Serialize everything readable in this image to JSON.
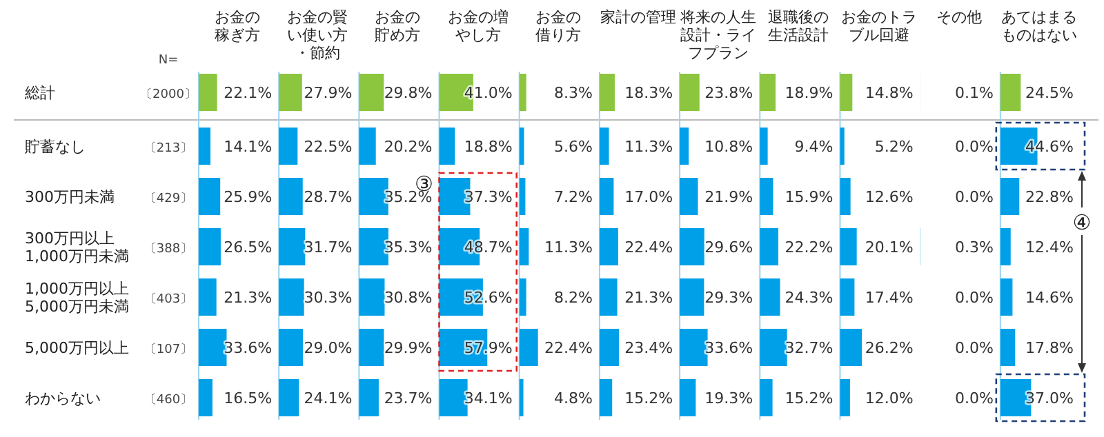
{
  "chart_data": [
    {
      "type": "bar",
      "orientation": "horizontal",
      "title": "お金の稼ぎ方",
      "categories": [
        "総計",
        "貯蓄なし",
        "300万円未満",
        "300万円以上\n1,000万円未満",
        "1,000万円以上\n5,000万円未満",
        "5,000万円以上",
        "わからない"
      ],
      "values": [
        22.1,
        14.1,
        25.9,
        26.5,
        21.3,
        33.6,
        16.5
      ],
      "value_labels": [
        "22.1%",
        "14.1%",
        "25.9%",
        "26.5%",
        "21.3%",
        "33.6%",
        "16.5%"
      ],
      "colors": [
        "#8cc63e",
        "#00a0e9",
        "#00a0e9",
        "#00a0e9",
        "#00a0e9",
        "#00a0e9",
        "#00a0e9"
      ],
      "tick_labels": "y",
      "annotations": [
        "N=",
        "〔2000〕",
        "〔213〕",
        "〔429〕",
        "〔388〕",
        "〔403〕",
        "〔107〕",
        "〔460〕"
      ]
    },
    {
      "type": "bar",
      "orientation": "horizontal",
      "title": "お金の賢い使い方・節約",
      "categories": [
        null,
        null,
        null,
        null,
        null,
        null,
        null
      ],
      "values": [
        27.9,
        22.5,
        28.7,
        31.7,
        30.3,
        29.0,
        24.1
      ],
      "value_labels": [
        "27.9%",
        "22.5%",
        "28.7%",
        "31.7%",
        "30.3%",
        "29.0%",
        "24.1%"
      ],
      "colors": [
        "#8cc63e",
        "#00a0e9",
        "#00a0e9",
        "#00a0e9",
        "#00a0e9",
        "#00a0e9",
        "#00a0e9"
      ],
      "tick_labels": false
    },
    {
      "type": "bar",
      "orientation": "horizontal",
      "title": "お金の貯め方",
      "categories": [
        null,
        null,
        null,
        null,
        null,
        null,
        null
      ],
      "values": [
        29.8,
        20.2,
        35.2,
        35.3,
        30.8,
        29.9,
        23.7
      ],
      "value_labels": [
        "29.8%",
        "20.2%",
        "35.2%",
        "35.3%",
        "30.8%",
        "29.9%",
        "23.7%"
      ],
      "colors": [
        "#8cc63e",
        "#00a0e9",
        "#00a0e9",
        "#00a0e9",
        "#00a0e9",
        "#00a0e9",
        "#00a0e9"
      ],
      "tick_labels": false
    },
    {
      "type": "bar",
      "orientation": "horizontal",
      "title": "お金の増やし方",
      "categories": [
        null,
        null,
        null,
        null,
        null,
        null,
        null
      ],
      "values": [
        41.0,
        18.8,
        37.3,
        48.7,
        52.6,
        57.9,
        34.1
      ],
      "value_labels": [
        "41.0%",
        "18.8%",
        "37.3%",
        "48.7%",
        "52.6%",
        "57.9%",
        "34.1%"
      ],
      "colors": [
        "#8cc63e",
        "#00a0e9",
        "#00a0e9",
        "#00a0e9",
        "#00a0e9",
        "#00a0e9",
        "#00a0e9"
      ],
      "tick_labels": false,
      "annotations": [
        "③"
      ]
    },
    {
      "type": "bar",
      "orientation": "horizontal",
      "title": "お金の借り方",
      "categories": [
        null,
        null,
        null,
        null,
        null,
        null,
        null
      ],
      "values": [
        8.3,
        5.6,
        7.2,
        11.3,
        8.2,
        22.4,
        4.8
      ],
      "value_labels": [
        "8.3%",
        "5.6%",
        "7.2%",
        "11.3%",
        "8.2%",
        "22.4%",
        "4.8%"
      ],
      "colors": [
        "#8cc63e",
        "#00a0e9",
        "#00a0e9",
        "#00a0e9",
        "#00a0e9",
        "#00a0e9",
        "#00a0e9"
      ],
      "tick_labels": false
    },
    {
      "type": "bar",
      "orientation": "horizontal",
      "title": "家計の管理",
      "categories": [
        null,
        null,
        null,
        null,
        null,
        null,
        null
      ],
      "values": [
        18.3,
        11.3,
        17.0,
        22.4,
        21.3,
        23.4,
        15.2
      ],
      "value_labels": [
        "18.3%",
        "11.3%",
        "17.0%",
        "22.4%",
        "21.3%",
        "23.4%",
        "15.2%"
      ],
      "colors": [
        "#8cc63e",
        "#00a0e9",
        "#00a0e9",
        "#00a0e9",
        "#00a0e9",
        "#00a0e9",
        "#00a0e9"
      ],
      "tick_labels": false
    },
    {
      "type": "bar",
      "orientation": "horizontal",
      "title": "将来の人生設計・ライフプラン",
      "categories": [
        null,
        null,
        null,
        null,
        null,
        null,
        null
      ],
      "values": [
        23.8,
        10.8,
        21.9,
        29.6,
        29.3,
        33.6,
        19.3
      ],
      "value_labels": [
        "23.8%",
        "10.8%",
        "21.9%",
        "29.6%",
        "29.3%",
        "33.6%",
        "19.3%"
      ],
      "colors": [
        "#8cc63e",
        "#00a0e9",
        "#00a0e9",
        "#00a0e9",
        "#00a0e9",
        "#00a0e9",
        "#00a0e9"
      ],
      "tick_labels": false
    },
    {
      "type": "bar",
      "orientation": "horizontal",
      "title": "退職後の生活設計",
      "categories": [
        null,
        null,
        null,
        null,
        null,
        null,
        null
      ],
      "values": [
        18.9,
        9.4,
        15.9,
        22.2,
        24.3,
        32.7,
        15.2
      ],
      "value_labels": [
        "18.9%",
        "9.4%",
        "15.9%",
        "22.2%",
        "24.3%",
        "32.7%",
        "15.2%"
      ],
      "colors": [
        "#8cc63e",
        "#00a0e9",
        "#00a0e9",
        "#00a0e9",
        "#00a0e9",
        "#00a0e9",
        "#00a0e9"
      ],
      "tick_labels": false
    },
    {
      "type": "bar",
      "orientation": "horizontal",
      "title": "お金のトラブル回避",
      "categories": [
        null,
        null,
        null,
        null,
        null,
        null,
        null
      ],
      "values": [
        14.8,
        5.2,
        12.6,
        20.1,
        17.4,
        26.2,
        12.0
      ],
      "value_labels": [
        "14.8%",
        "5.2%",
        "12.6%",
        "20.1%",
        "17.4%",
        "26.2%",
        "12.0%"
      ],
      "colors": [
        "#8cc63e",
        "#00a0e9",
        "#00a0e9",
        "#00a0e9",
        "#00a0e9",
        "#00a0e9",
        "#00a0e9"
      ],
      "tick_labels": false
    },
    {
      "type": "other",
      "title": "その他",
      "categories": [
        null,
        null,
        null,
        null,
        null,
        null,
        null
      ],
      "values": [
        0.1,
        0.0,
        0.0,
        0.3,
        0.0,
        0.0,
        0.0
      ],
      "value_labels": [
        "0.1%",
        "0.0%",
        "0.0%",
        "0.3%",
        "0.0%",
        "0.0%",
        "0.0%"
      ],
      "colors": [
        "#8cc63e",
        "#00a0e9",
        "#00a0e9",
        "#00a0e9",
        "#00a0e9",
        "#00a0e9",
        "#00a0e9"
      ]
    },
    {
      "type": "bar",
      "orientation": "horizontal",
      "title": "あてはまるものはない",
      "categories": [
        null,
        null,
        null,
        null,
        null,
        null,
        null
      ],
      "values": [
        24.5,
        44.6,
        22.8,
        12.4,
        14.6,
        17.8,
        37.0
      ],
      "value_labels": [
        "24.5%",
        "44.6%",
        "22.8%",
        "12.4%",
        "14.6%",
        "17.8%",
        "37.0%"
      ],
      "colors": [
        "#8cc63e",
        "#00a0e9",
        "#00a0e9",
        "#00a0e9",
        "#00a0e9",
        "#00a0e9",
        "#00a0e9"
      ],
      "tick_labels": false,
      "annotations": [
        "④"
      ]
    }
  ]
}
